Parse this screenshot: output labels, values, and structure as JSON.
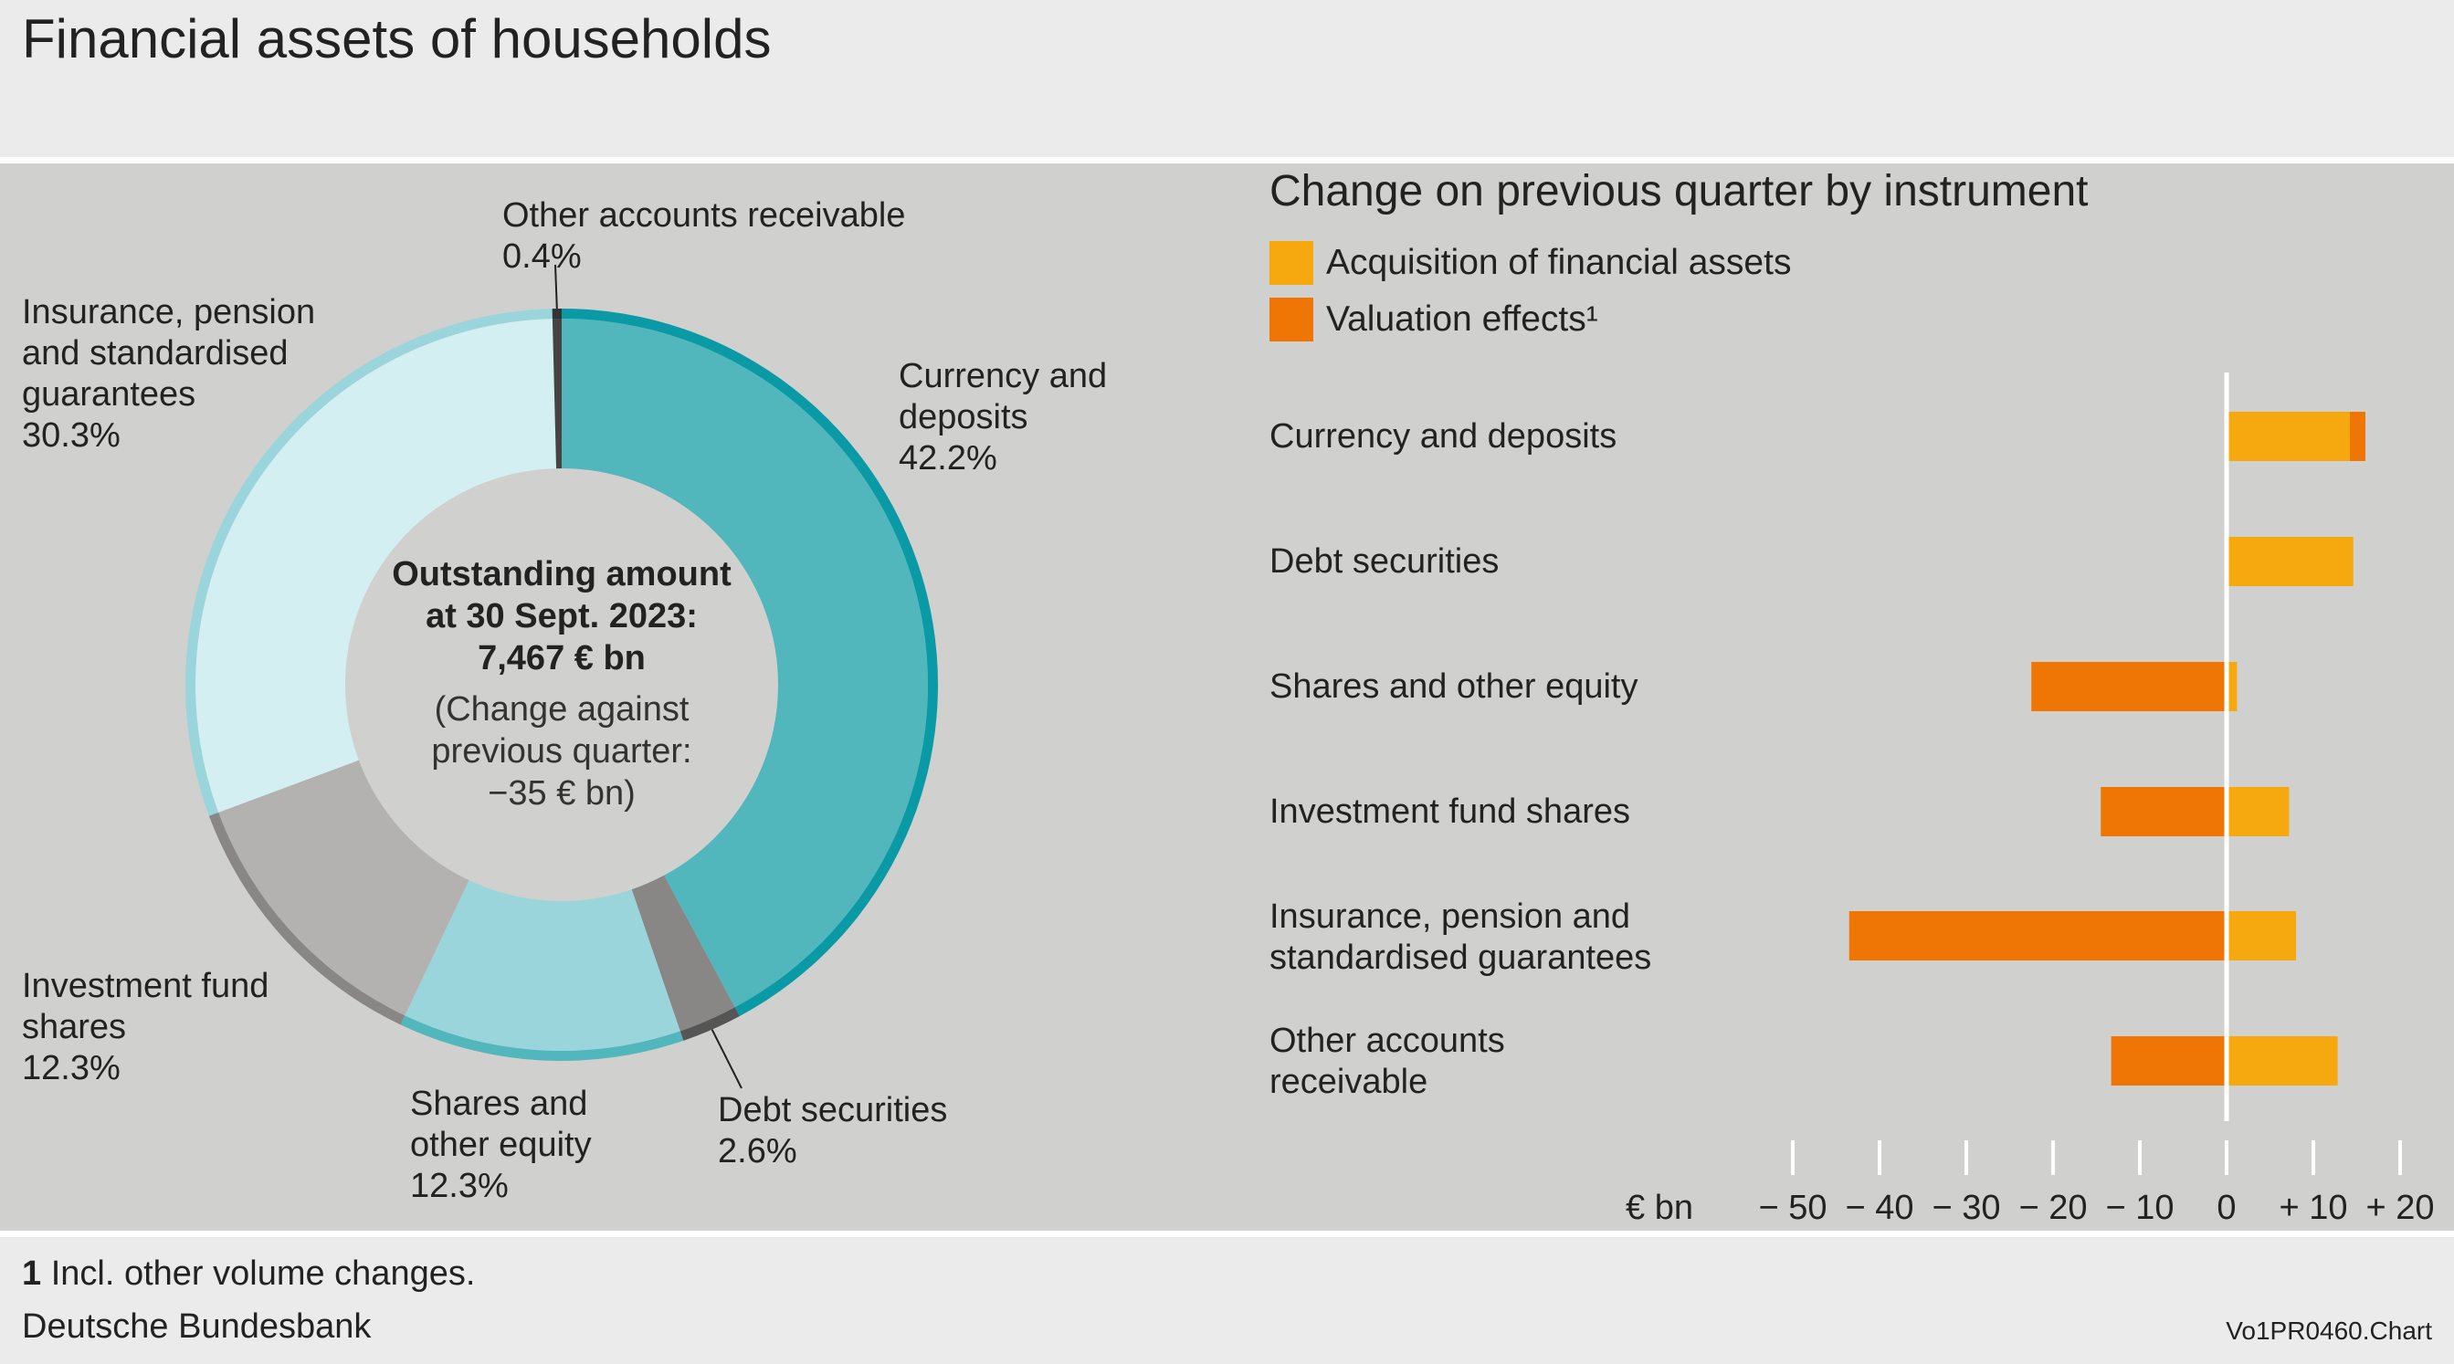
{
  "title": "Financial assets of households",
  "donut": {
    "center_line1": "Outstanding amount",
    "center_line2": "at 30 Sept. 2023:",
    "center_line3": "7,467 € bn",
    "center_sub1": "(Change against",
    "center_sub2": "previous quarter:",
    "center_sub3": "−35 € bn)",
    "segments": [
      {
        "name": "Currency and deposits",
        "label1": "Currency and",
        "label2": "deposits",
        "label3": "",
        "value": 42.2,
        "pct": "42.2%",
        "fill": "#52b7bd",
        "rim": "#0a9aa6"
      },
      {
        "name": "Debt securities",
        "label1": "Debt securities",
        "label2": "",
        "label3": "",
        "value": 2.6,
        "pct": "2.6%",
        "fill": "#888786",
        "rim": "#555555"
      },
      {
        "name": "Shares and other equity",
        "label1": "Shares and",
        "label2": "other equity",
        "label3": "",
        "value": 12.3,
        "pct": "12.3%",
        "fill": "#9bd5dc",
        "rim": "#52b7bd"
      },
      {
        "name": "Investment fund shares",
        "label1": "Investment fund",
        "label2": "shares",
        "label3": "",
        "value": 12.3,
        "pct": "12.3%",
        "fill": "#b4b2b1",
        "rim": "#888786"
      },
      {
        "name": "Insurance, pension and standardised guarantees",
        "label1": "Insurance, pension",
        "label2": "and standardised",
        "label3": "guarantees",
        "value": 30.3,
        "pct": "30.3%",
        "fill": "#d3eff2",
        "rim": "#9bd5dc"
      },
      {
        "name": "Other accounts receivable",
        "label1": "Other accounts receivable",
        "label2": "",
        "label3": "",
        "value": 0.4,
        "pct": "0.4%",
        "fill": "#444444",
        "rim": "#333333"
      }
    ]
  },
  "chart_data": {
    "type": "bar",
    "title": "Change on previous quarter by instrument",
    "unit": "€ bn",
    "xlim": [
      -50,
      20
    ],
    "ticks": [
      -50,
      -40,
      -30,
      -20,
      -10,
      0,
      10,
      20
    ],
    "tick_labels": [
      "− 50",
      "− 40",
      "− 30",
      "− 20",
      "− 10",
      "0",
      "+ 10",
      "+ 20"
    ],
    "categories": [
      {
        "line1": "Currency and deposits",
        "line2": ""
      },
      {
        "line1": "Debt securities",
        "line2": ""
      },
      {
        "line1": "Shares and other equity",
        "line2": ""
      },
      {
        "line1": "Investment fund shares",
        "line2": ""
      },
      {
        "line1": "Insurance, pension and",
        "line2": "standardised guarantees"
      },
      {
        "line1": "Other accounts",
        "line2": "receivable"
      }
    ],
    "series": [
      {
        "name": "Acquisition of financial assets",
        "color": "#f5a90f",
        "values": [
          14.2,
          14.6,
          1.2,
          7.2,
          8.0,
          12.8
        ]
      },
      {
        "name": "Valuation effects¹",
        "color": "#ef7604",
        "values": [
          1.8,
          0,
          -22.5,
          -14.5,
          -43.5,
          -13.3
        ]
      }
    ]
  },
  "footnote_num": "1",
  "footnote_text": " Incl. other volume changes.",
  "source": "Deutsche Bundesbank",
  "code": "Vo1PR0460.Chart"
}
